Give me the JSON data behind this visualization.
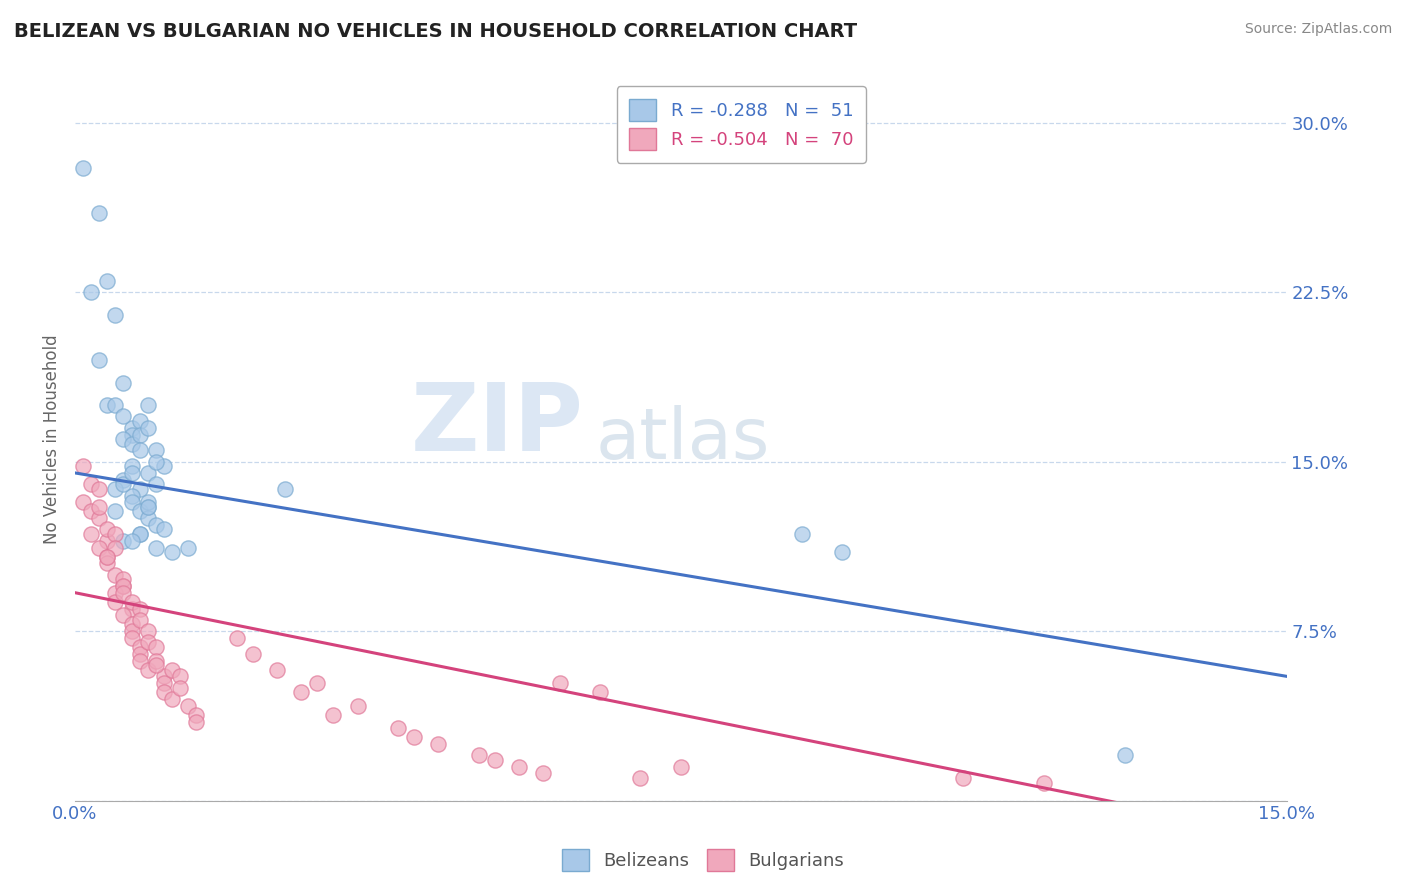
{
  "title": "BELIZEAN VS BULGARIAN NO VEHICLES IN HOUSEHOLD CORRELATION CHART",
  "source": "Source: ZipAtlas.com",
  "ylabel": "No Vehicles in Household",
  "yticks": [
    0.0,
    0.075,
    0.15,
    0.225,
    0.3
  ],
  "ytick_labels": [
    "",
    "7.5%",
    "15.0%",
    "22.5%",
    "30.0%"
  ],
  "xlim": [
    0.0,
    0.15
  ],
  "ylim": [
    0.0,
    0.32
  ],
  "belizean_color": "#A8C8E8",
  "bulgarian_color": "#F0A8BC",
  "belizean_edge_color": "#7AAAD0",
  "bulgarian_edge_color": "#E07898",
  "belizean_line_color": "#4472C4",
  "bulgarian_line_color": "#D4437C",
  "legend_label_1": "R = -0.288   N =  51",
  "legend_label_2": "R = -0.504   N =  70",
  "watermark_zip": "ZIP",
  "watermark_atlas": "atlas",
  "belizean_x": [
    0.001,
    0.003,
    0.002,
    0.004,
    0.005,
    0.003,
    0.006,
    0.004,
    0.007,
    0.005,
    0.006,
    0.007,
    0.008,
    0.006,
    0.009,
    0.007,
    0.008,
    0.01,
    0.009,
    0.011,
    0.007,
    0.008,
    0.009,
    0.01,
    0.006,
    0.008,
    0.01,
    0.007,
    0.009,
    0.005,
    0.007,
    0.008,
    0.006,
    0.009,
    0.008,
    0.01,
    0.007,
    0.009,
    0.006,
    0.008,
    0.01,
    0.005,
    0.007,
    0.012,
    0.014,
    0.009,
    0.011,
    0.026,
    0.09,
    0.095,
    0.13
  ],
  "belizean_y": [
    0.28,
    0.26,
    0.225,
    0.23,
    0.215,
    0.195,
    0.185,
    0.175,
    0.165,
    0.175,
    0.17,
    0.162,
    0.168,
    0.16,
    0.175,
    0.158,
    0.162,
    0.155,
    0.165,
    0.148,
    0.148,
    0.155,
    0.145,
    0.15,
    0.142,
    0.138,
    0.14,
    0.135,
    0.13,
    0.138,
    0.132,
    0.128,
    0.14,
    0.125,
    0.118,
    0.122,
    0.145,
    0.132,
    0.115,
    0.118,
    0.112,
    0.128,
    0.115,
    0.11,
    0.112,
    0.13,
    0.12,
    0.138,
    0.118,
    0.11,
    0.02
  ],
  "bulgarian_x": [
    0.001,
    0.002,
    0.001,
    0.002,
    0.003,
    0.002,
    0.003,
    0.004,
    0.003,
    0.004,
    0.003,
    0.004,
    0.005,
    0.004,
    0.005,
    0.006,
    0.005,
    0.004,
    0.005,
    0.006,
    0.005,
    0.006,
    0.007,
    0.006,
    0.007,
    0.006,
    0.007,
    0.008,
    0.007,
    0.008,
    0.007,
    0.008,
    0.009,
    0.008,
    0.009,
    0.008,
    0.01,
    0.009,
    0.01,
    0.011,
    0.01,
    0.011,
    0.012,
    0.011,
    0.013,
    0.012,
    0.014,
    0.015,
    0.013,
    0.015,
    0.02,
    0.022,
    0.025,
    0.03,
    0.028,
    0.035,
    0.032,
    0.04,
    0.042,
    0.045,
    0.05,
    0.055,
    0.052,
    0.058,
    0.06,
    0.065,
    0.07,
    0.075,
    0.11,
    0.12
  ],
  "bulgarian_y": [
    0.148,
    0.14,
    0.132,
    0.128,
    0.138,
    0.118,
    0.125,
    0.115,
    0.13,
    0.12,
    0.112,
    0.108,
    0.118,
    0.105,
    0.112,
    0.095,
    0.1,
    0.108,
    0.092,
    0.098,
    0.088,
    0.095,
    0.085,
    0.092,
    0.088,
    0.082,
    0.078,
    0.085,
    0.075,
    0.08,
    0.072,
    0.068,
    0.075,
    0.065,
    0.07,
    0.062,
    0.068,
    0.058,
    0.062,
    0.055,
    0.06,
    0.052,
    0.058,
    0.048,
    0.055,
    0.045,
    0.042,
    0.038,
    0.05,
    0.035,
    0.072,
    0.065,
    0.058,
    0.052,
    0.048,
    0.042,
    0.038,
    0.032,
    0.028,
    0.025,
    0.02,
    0.015,
    0.018,
    0.012,
    0.052,
    0.048,
    0.01,
    0.015,
    0.01,
    0.008
  ]
}
